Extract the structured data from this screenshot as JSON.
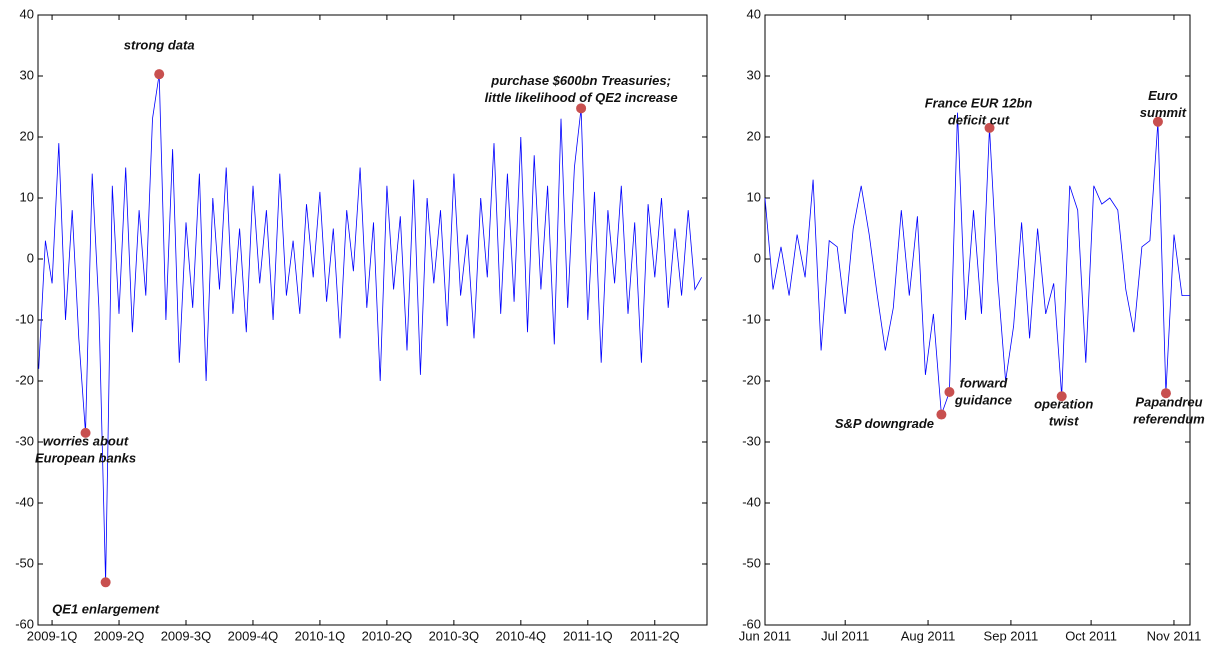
{
  "chart_data": [
    {
      "type": "line",
      "color": "#0000ff",
      "marker_color": "#c8504f",
      "x": [
        -0.2,
        -0.1,
        0,
        0.1,
        0.2,
        0.3,
        0.4,
        0.5,
        0.6,
        0.7,
        0.8,
        0.9,
        1,
        1.1,
        1.2,
        1.3,
        1.4,
        1.5,
        1.6,
        1.7,
        1.8,
        1.9,
        2,
        2.1,
        2.2,
        2.3,
        2.4,
        2.5,
        2.6,
        2.7,
        2.8,
        2.9,
        3,
        3.1,
        3.2,
        3.3,
        3.4,
        3.5,
        3.6,
        3.7,
        3.8,
        3.9,
        4,
        4.1,
        4.2,
        4.3,
        4.4,
        4.5,
        4.6,
        4.7,
        4.8,
        4.9,
        5,
        5.1,
        5.2,
        5.3,
        5.4,
        5.5,
        5.6,
        5.7,
        5.8,
        5.9,
        6,
        6.1,
        6.2,
        6.3,
        6.4,
        6.5,
        6.6,
        6.7,
        6.8,
        6.9,
        7,
        7.1,
        7.2,
        7.3,
        7.4,
        7.5,
        7.6,
        7.7,
        7.8,
        7.9,
        8,
        8.1,
        8.2,
        8.3,
        8.4,
        8.5,
        8.6,
        8.7,
        8.8,
        8.9,
        9,
        9.1,
        9.2,
        9.3,
        9.4,
        9.5,
        9.6,
        9.7
      ],
      "values": [
        -18,
        3,
        -4,
        19,
        -10,
        8,
        -13,
        -28.5,
        14,
        -8,
        -53,
        12,
        -9,
        15,
        -12,
        8,
        -6,
        23,
        30.3,
        -10,
        18,
        -17,
        6,
        -8,
        14,
        -20,
        10,
        -5,
        15,
        -9,
        5,
        -12,
        12,
        -4,
        8,
        -10,
        14,
        -6,
        3,
        -9,
        9,
        -3,
        11,
        -7,
        5,
        -13,
        8,
        -2,
        15,
        -8,
        6,
        -20,
        12,
        -5,
        7,
        -15,
        13,
        -19,
        10,
        -4,
        8,
        -11,
        14,
        -6,
        4,
        -13,
        10,
        -3,
        19,
        -9,
        14,
        -7,
        20,
        -12,
        17,
        -5,
        12,
        -14,
        23,
        -8,
        15,
        24.7,
        -10,
        11,
        -17,
        8,
        -4,
        12,
        -9,
        6,
        -17,
        9,
        -3,
        10,
        -8,
        5,
        -6,
        8,
        -5,
        -3
      ],
      "xlim": [
        -0.21,
        9.78
      ],
      "ylim": [
        -60,
        40
      ],
      "xticks": [
        {
          "value": 0,
          "label": "2009-1Q"
        },
        {
          "value": 1,
          "label": "2009-2Q"
        },
        {
          "value": 2,
          "label": "2009-3Q"
        },
        {
          "value": 3,
          "label": "2009-4Q"
        },
        {
          "value": 4,
          "label": "2010-1Q"
        },
        {
          "value": 5,
          "label": "2010-2Q"
        },
        {
          "value": 6,
          "label": "2010-3Q"
        },
        {
          "value": 7,
          "label": "2010-4Q"
        },
        {
          "value": 8,
          "label": "2011-1Q"
        },
        {
          "value": 9,
          "label": "2011-2Q"
        }
      ],
      "yticks": [
        -60,
        -50,
        -40,
        -30,
        -20,
        -10,
        0,
        10,
        20,
        30,
        40
      ],
      "annotations": [
        {
          "text": [
            "strong data"
          ],
          "x": 1.6,
          "y": 30.3
        },
        {
          "text": [
            "worries about",
            "European banks"
          ],
          "x": 0.5,
          "y": -28.5
        },
        {
          "text": [
            "QE1 enlargement"
          ],
          "x": 0.8,
          "y": -53
        },
        {
          "text": [
            "purchase $600bn Treasuries;",
            "little likelihood of QE2 increase"
          ],
          "x": 7.9,
          "y": 24.7
        }
      ]
    },
    {
      "type": "line",
      "color": "#0000ff",
      "marker_color": "#c8504f",
      "x": [
        0,
        3,
        6,
        9,
        12,
        15,
        18,
        21,
        24,
        27,
        30,
        33,
        36,
        39,
        42,
        45,
        48,
        51,
        54,
        57,
        60,
        63,
        66,
        69,
        72,
        75,
        78,
        81,
        84,
        87,
        90,
        93,
        96,
        99,
        102,
        105,
        108,
        111,
        114,
        117,
        120,
        123,
        126,
        129,
        132,
        135,
        138,
        141,
        144,
        147,
        150,
        153,
        156,
        159
      ],
      "values": [
        10,
        -5,
        2,
        -6,
        4,
        -3,
        13,
        -15,
        3,
        2,
        -9,
        5,
        12,
        4,
        -6,
        -15,
        -8,
        8,
        -6,
        7,
        -19,
        -9,
        -25.5,
        -21.8,
        24,
        -10,
        8,
        -9,
        21.5,
        -3,
        -20,
        -11,
        6,
        -13,
        5,
        -9,
        -4,
        -22.5,
        12,
        8,
        -17,
        12,
        9,
        10,
        8,
        -5,
        -12,
        2,
        3,
        22.5,
        -22,
        4,
        -6,
        -6
      ],
      "xlim": [
        0,
        159
      ],
      "ylim": [
        -60,
        40
      ],
      "xticks": [
        {
          "value": 0,
          "label": "Jun 2011"
        },
        {
          "value": 30,
          "label": "Jul 2011"
        },
        {
          "value": 61,
          "label": "Aug 2011"
        },
        {
          "value": 92,
          "label": "Sep 2011"
        },
        {
          "value": 122,
          "label": "Oct 2011"
        },
        {
          "value": 153,
          "label": "Nov 2011"
        }
      ],
      "yticks": [
        -60,
        -50,
        -40,
        -30,
        -20,
        -10,
        0,
        10,
        20,
        30,
        40
      ],
      "annotations": [
        {
          "text": [
            "France EUR 12bn",
            "deficit cut"
          ],
          "x": 84,
          "y": 21.5
        },
        {
          "text": [
            "forward",
            "guidance"
          ],
          "x": 69,
          "y": -21.8
        },
        {
          "text": [
            "S&P downgrade"
          ],
          "x": 66,
          "y": -25.5
        },
        {
          "text": [
            "operation",
            "twist"
          ],
          "x": 111,
          "y": -22.5
        },
        {
          "text": [
            "Euro",
            "summit"
          ],
          "x": 147,
          "y": 22.5
        },
        {
          "text": [
            "Papandreu",
            "referendum"
          ],
          "x": 150,
          "y": -22
        }
      ]
    }
  ]
}
